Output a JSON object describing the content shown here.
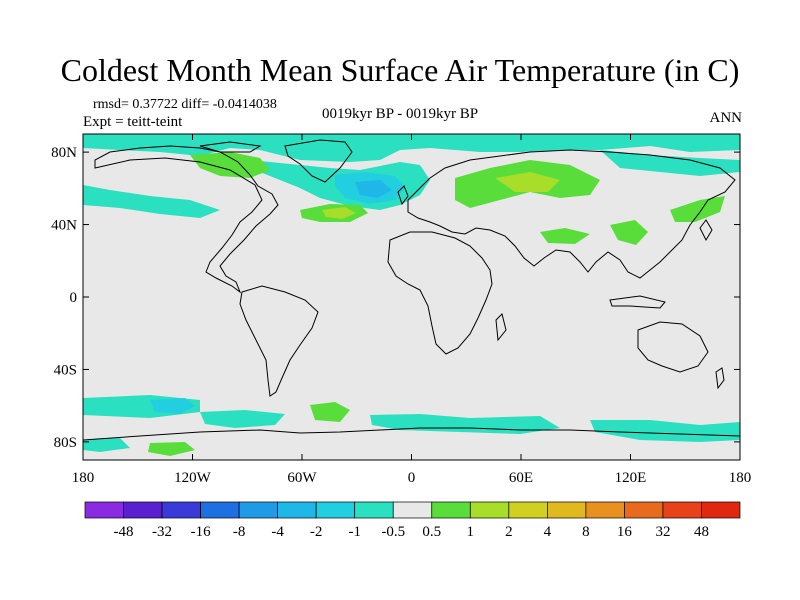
{
  "title": "Coldest Month Mean Surface Air Temperature (in C)",
  "stats": "rmsd= 0.37722 diff= -0.0414038",
  "expt": "Expt = teitt-teint",
  "period": "0019kyr BP - 0019kyr BP",
  "season": "ANN",
  "axes": {
    "lat_ticks": [
      "80N",
      "40N",
      "0",
      "40S",
      "80S"
    ],
    "lon_ticks": [
      "180",
      "120W",
      "60W",
      "0",
      "60E",
      "120E",
      "180"
    ]
  },
  "colorbar": {
    "colors": [
      "#8a2be2",
      "#5a1fd0",
      "#3a3ad8",
      "#1e6fe0",
      "#1f9ae6",
      "#1fb6e8",
      "#22cfe0",
      "#2ae0c0",
      "#e8e8e8",
      "#58dd3a",
      "#a8dd2a",
      "#d0d020",
      "#e0b820",
      "#e89020",
      "#e86a1c",
      "#e8421a",
      "#e02810"
    ],
    "labels": [
      "-48",
      "-32",
      "-16",
      "-8",
      "-4",
      "-2",
      "-1",
      "-0.5",
      "0.5",
      "1",
      "2",
      "4",
      "8",
      "16",
      "32",
      "48"
    ]
  },
  "background_color": "#e8e8e8",
  "coast_color": "#000000"
}
